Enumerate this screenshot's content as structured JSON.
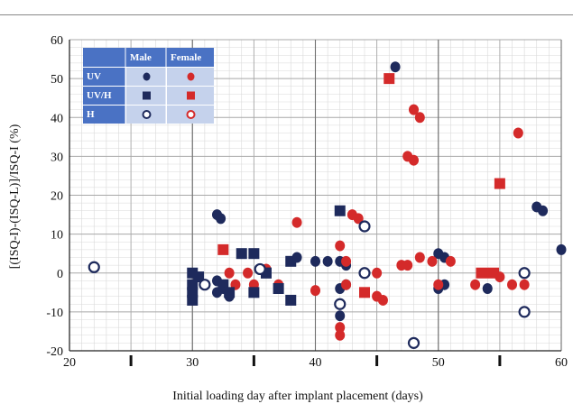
{
  "chart_data": {
    "type": "scatter",
    "title": "",
    "xlabel": "Initial loading day after implant placement (days)",
    "ylabel": "[(ISQ-I)-(ISQ-L)]/ISQ-I (%)",
    "xlim": [
      20,
      60
    ],
    "ylim": [
      -20,
      60
    ],
    "xticks": [
      "20",
      "30",
      "40",
      "50",
      "60"
    ],
    "yticks": [
      "-20",
      "-10",
      "0",
      "10",
      "20",
      "30",
      "40",
      "50",
      "60"
    ],
    "grid": true,
    "legend_position": "top-left",
    "legend": {
      "columns": [
        "Male",
        "Female"
      ],
      "rows": [
        "UV",
        "UV/H",
        "H"
      ]
    },
    "colors": {
      "male": "#1e2a5c",
      "female": "#d42a2a",
      "legend_header": "#4a72c4",
      "legend_body": "#c5d2ec"
    },
    "series": [
      {
        "name": "UV Male",
        "group": "UV",
        "sex": "Male",
        "marker": "filled-circle",
        "color": "#1e2a5c",
        "points": [
          [
            32,
            15
          ],
          [
            32.3,
            14
          ],
          [
            32,
            -2
          ],
          [
            32.5,
            -4
          ],
          [
            32,
            -5
          ],
          [
            33,
            -6
          ],
          [
            42,
            -11
          ],
          [
            46.5,
            53
          ],
          [
            42,
            3
          ],
          [
            42.5,
            2
          ],
          [
            42,
            -4
          ],
          [
            42.5,
            -3
          ],
          [
            41,
            3
          ],
          [
            40,
            3
          ],
          [
            38.5,
            4
          ],
          [
            50,
            5
          ],
          [
            50.5,
            4
          ],
          [
            50,
            -4
          ],
          [
            50.5,
            -3
          ],
          [
            54,
            -4
          ],
          [
            58.5,
            16
          ],
          [
            58,
            17
          ],
          [
            60,
            6
          ]
        ]
      },
      {
        "name": "UV Female",
        "group": "UV",
        "sex": "Female",
        "marker": "filled-circle",
        "color": "#d42a2a",
        "points": [
          [
            38.5,
            13
          ],
          [
            40,
            -4.5
          ],
          [
            42,
            7
          ],
          [
            42.5,
            3
          ],
          [
            42.5,
            -3
          ],
          [
            43,
            15
          ],
          [
            43.5,
            14
          ],
          [
            44,
            0
          ],
          [
            45,
            0
          ],
          [
            45.5,
            -7
          ],
          [
            45,
            -6
          ],
          [
            42,
            -14
          ],
          [
            42,
            -16
          ],
          [
            47,
            2
          ],
          [
            47.5,
            2
          ],
          [
            47.5,
            30
          ],
          [
            48,
            29
          ],
          [
            48,
            42
          ],
          [
            48.5,
            40
          ],
          [
            48.5,
            4
          ],
          [
            49.5,
            3
          ],
          [
            50,
            -3
          ],
          [
            51,
            3
          ],
          [
            53,
            -3
          ],
          [
            54,
            0
          ],
          [
            55,
            -1
          ],
          [
            56,
            -3
          ],
          [
            56.5,
            36
          ],
          [
            57,
            -3
          ],
          [
            33,
            0
          ],
          [
            33.5,
            -3
          ],
          [
            34.5,
            0
          ],
          [
            35,
            -3
          ],
          [
            36,
            1
          ],
          [
            37,
            -3
          ]
        ]
      },
      {
        "name": "UV/H Male",
        "group": "UV/H",
        "sex": "Male",
        "marker": "filled-square",
        "color": "#1e2a5c",
        "points": [
          [
            30,
            -5
          ],
          [
            30,
            -3
          ],
          [
            30.5,
            -1
          ],
          [
            32.5,
            -3
          ],
          [
            33,
            -5
          ],
          [
            36,
            0
          ],
          [
            37,
            -4
          ],
          [
            38,
            -7
          ],
          [
            38,
            3
          ],
          [
            34,
            5
          ],
          [
            35,
            5
          ],
          [
            36,
            0
          ],
          [
            35,
            -5
          ],
          [
            42,
            16
          ],
          [
            30,
            0
          ],
          [
            30,
            -7
          ]
        ]
      },
      {
        "name": "UV/H Female",
        "group": "UV/H",
        "sex": "Female",
        "marker": "filled-square",
        "color": "#d42a2a",
        "points": [
          [
            32.5,
            6
          ],
          [
            44,
            -5
          ],
          [
            46,
            50
          ],
          [
            53.5,
            0
          ],
          [
            54.5,
            0
          ],
          [
            55,
            23
          ]
        ]
      },
      {
        "name": "H Male",
        "group": "H",
        "sex": "Male",
        "marker": "open-circle",
        "color": "#1e2a5c",
        "points": [
          [
            22,
            1.5
          ],
          [
            31,
            -3
          ],
          [
            35.5,
            1
          ],
          [
            44,
            12
          ],
          [
            44,
            0
          ],
          [
            42,
            -8
          ],
          [
            48,
            -18
          ],
          [
            57,
            0
          ],
          [
            57,
            -10
          ]
        ]
      },
      {
        "name": "H Female",
        "group": "H",
        "sex": "Female",
        "marker": "open-circle",
        "color": "#d42a2a",
        "points": []
      }
    ]
  }
}
